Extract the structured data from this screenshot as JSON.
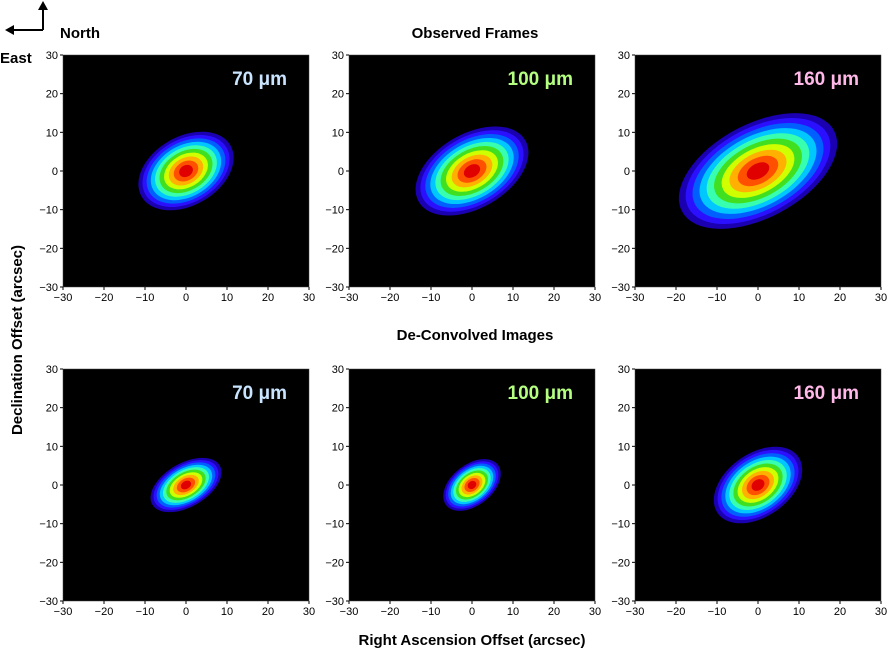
{
  "figure": {
    "compass": {
      "north": "North",
      "east": "East"
    },
    "row_titles": [
      "Observed Frames",
      "De-Convolved Images"
    ],
    "xlabel": "Right  Ascension Offset (arcsec)",
    "ylabel": "Declination Offset (arcsec)"
  },
  "colors": {
    "background": "#000000",
    "colormap": [
      "#1a00b0",
      "#2a10ff",
      "#0060ff",
      "#00c8ff",
      "#38ffb0",
      "#40e020",
      "#d0ff00",
      "#ffb000",
      "#ff5000",
      "#e00000"
    ],
    "label_70": "#c8e4ff",
    "label_100": "#b4ff80",
    "label_160": "#ffb8e8"
  },
  "chart_data": [
    {
      "type": "heatmap",
      "row": "Observed Frames",
      "label": "70 μm",
      "label_color": "#c8e4ff",
      "xlim": [
        -30,
        30
      ],
      "ylim": [
        -30,
        30
      ],
      "xticks": [
        -30,
        -20,
        -10,
        0,
        10,
        20,
        30
      ],
      "yticks": [
        -30,
        -20,
        -10,
        0,
        10,
        20,
        30
      ],
      "source": {
        "center": [
          0,
          0
        ],
        "outer_extent": [
          [
            -12,
            13
          ],
          [
            12,
            -12
          ]
        ],
        "position_angle_deg": -30
      }
    },
    {
      "type": "heatmap",
      "row": "Observed Frames",
      "label": "100 μm",
      "label_color": "#b4ff80",
      "xlim": [
        -30,
        30
      ],
      "ylim": [
        -30,
        30
      ],
      "xticks": [
        -30,
        -20,
        -10,
        0,
        10,
        20,
        30
      ],
      "yticks": [
        -30,
        -20,
        -10,
        0,
        10,
        20,
        30
      ],
      "source": {
        "center": [
          0,
          0
        ],
        "outer_extent": [
          [
            -15,
            14
          ],
          [
            15,
            -12
          ]
        ],
        "position_angle_deg": -30
      }
    },
    {
      "type": "heatmap",
      "row": "Observed Frames",
      "label": "160 μm",
      "label_color": "#ffb8e8",
      "xlim": [
        -30,
        30
      ],
      "ylim": [
        -30,
        30
      ],
      "xticks": [
        -30,
        -20,
        -10,
        0,
        10,
        20,
        30
      ],
      "yticks": [
        -30,
        -20,
        -10,
        0,
        10,
        20,
        30
      ],
      "source": {
        "center": [
          0,
          0
        ],
        "outer_extent": [
          [
            -24,
            18
          ],
          [
            18,
            -15
          ]
        ],
        "position_angle_deg": -28
      }
    },
    {
      "type": "heatmap",
      "row": "De-Convolved Images",
      "label": "70 μm",
      "label_color": "#c8e4ff",
      "xlim": [
        -30,
        30
      ],
      "ylim": [
        -30,
        30
      ],
      "xticks": [
        -30,
        -20,
        -10,
        0,
        10,
        20,
        30
      ],
      "yticks": [
        -30,
        -20,
        -10,
        0,
        10,
        20,
        30
      ],
      "source": {
        "center": [
          0,
          0
        ],
        "outer_extent": [
          [
            -8,
            8
          ],
          [
            11,
            -7
          ]
        ],
        "position_angle_deg": -30
      }
    },
    {
      "type": "heatmap",
      "row": "De-Convolved Images",
      "label": "100 μm",
      "label_color": "#b4ff80",
      "xlim": [
        -30,
        30
      ],
      "ylim": [
        -30,
        30
      ],
      "xticks": [
        -30,
        -20,
        -10,
        0,
        10,
        20,
        30
      ],
      "yticks": [
        -30,
        -20,
        -10,
        0,
        10,
        20,
        30
      ],
      "source": {
        "center": [
          0,
          0
        ],
        "outer_extent": [
          [
            -8,
            7
          ],
          [
            8,
            -7
          ]
        ],
        "position_angle_deg": -38
      }
    },
    {
      "type": "heatmap",
      "row": "De-Convolved Images",
      "label": "160 μm",
      "label_color": "#ffb8e8",
      "xlim": [
        -30,
        30
      ],
      "ylim": [
        -30,
        30
      ],
      "xticks": [
        -30,
        -20,
        -10,
        0,
        10,
        20,
        30
      ],
      "yticks": [
        -30,
        -20,
        -10,
        0,
        10,
        20,
        30
      ],
      "source": {
        "center": [
          0,
          0
        ],
        "outer_extent": [
          [
            -12,
            11
          ],
          [
            12,
            -11
          ]
        ],
        "position_angle_deg": -35
      }
    }
  ]
}
